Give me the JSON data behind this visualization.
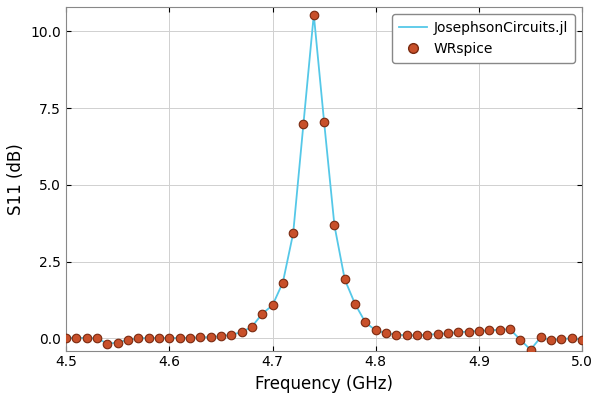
{
  "title": "",
  "xlabel": "Frequency (GHz)",
  "ylabel": "S11 (dB)",
  "xlim": [
    4.5,
    5.0
  ],
  "ylim": [
    -0.4,
    10.8
  ],
  "line_color": "#55c8e8",
  "dot_facecolor": "#c8502a",
  "dot_edgecolor": "#7a2a10",
  "legend_labels": [
    "JosephsonCircuits.jl",
    "WRspice"
  ],
  "background_color": "#ffffff",
  "grid_color": "#d0d0d0",
  "yticks": [
    0.0,
    2.5,
    5.0,
    7.5,
    10.0
  ],
  "xticks": [
    4.5,
    4.6,
    4.7,
    4.8,
    4.9,
    5.0
  ],
  "scatter_x": [
    4.5,
    4.51,
    4.52,
    4.53,
    4.54,
    4.55,
    4.56,
    4.57,
    4.58,
    4.59,
    4.6,
    4.61,
    4.62,
    4.63,
    4.64,
    4.65,
    4.66,
    4.67,
    4.68,
    4.69,
    4.7,
    4.71,
    4.72,
    4.73,
    4.74,
    4.75,
    4.76,
    4.77,
    4.78,
    4.79,
    4.8,
    4.81,
    4.82,
    4.83,
    4.84,
    4.85,
    4.86,
    4.87,
    4.88,
    4.89,
    4.9,
    4.91,
    4.92,
    4.93,
    4.94,
    4.95,
    4.96,
    4.97,
    4.98,
    4.99,
    5.0
  ],
  "scatter_y": [
    0.02,
    0.02,
    0.01,
    0.0,
    -0.17,
    -0.14,
    -0.04,
    0.0,
    0.01,
    0.01,
    0.01,
    0.01,
    0.02,
    0.03,
    0.04,
    0.07,
    0.12,
    0.2,
    0.38,
    0.8,
    1.08,
    1.82,
    3.42,
    7.0,
    10.55,
    7.05,
    3.68,
    1.92,
    1.12,
    0.52,
    0.26,
    0.17,
    0.12,
    0.1,
    0.1,
    0.12,
    0.14,
    0.17,
    0.2,
    0.22,
    0.24,
    0.26,
    0.28,
    0.3,
    -0.04,
    -0.37,
    0.04,
    -0.06,
    -0.02,
    0.0,
    -0.04
  ],
  "dot_size": 38,
  "dot_linewidth": 0.8,
  "line_width": 1.3,
  "tick_labelsize": 10,
  "axis_labelsize": 12,
  "legend_fontsize": 10
}
